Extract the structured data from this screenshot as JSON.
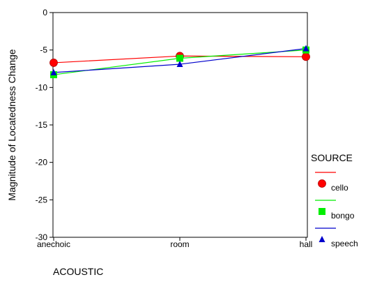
{
  "chart_data": {
    "type": "line",
    "xlabel": "ACOUSTIC",
    "ylabel": "Magnitude of Locatedness Change",
    "categories": [
      "anechoic",
      "room",
      "hall"
    ],
    "ylim": [
      -30,
      0
    ],
    "yticks": [
      0,
      -5,
      -10,
      -15,
      -20,
      -25,
      -30
    ],
    "ytick_labels": [
      "0",
      "-5",
      "-10",
      "-15",
      "-20",
      "-25",
      "-30"
    ],
    "grid": false,
    "legend": {
      "title": "SOURCE",
      "position": "right"
    },
    "series": [
      {
        "name": "cello",
        "color": "#ff0000",
        "marker": "circle",
        "values": [
          -6.7,
          -5.8,
          -5.9
        ]
      },
      {
        "name": "bongo",
        "color": "#00ee00",
        "marker": "square",
        "values": [
          -8.3,
          -6.1,
          -5.0
        ]
      },
      {
        "name": "speech",
        "color": "#0000cc",
        "marker": "triangle",
        "values": [
          -8.0,
          -6.9,
          -4.8
        ]
      }
    ]
  }
}
